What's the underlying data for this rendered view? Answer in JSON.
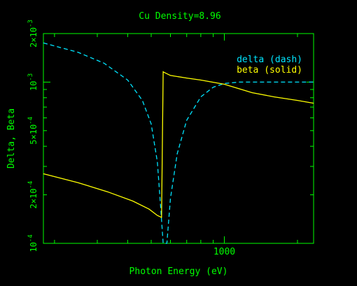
{
  "chart_data": {
    "type": "line",
    "title": "Cu Density=8.96",
    "xlabel": "Photon Energy (eV)",
    "ylabel": "Delta, Beta",
    "xscale": "log",
    "yscale": "log",
    "xlim": [
      180,
      2330
    ],
    "ylim": [
      0.0001,
      0.002
    ],
    "x_tick_labels": [
      "1000"
    ],
    "y_tick_labels": [
      {
        "mantissa": "",
        "exponent": "-4",
        "value": 0.0001
      },
      {
        "mantissa": "2×10",
        "exponent": "-4",
        "value": 0.0002
      },
      {
        "mantissa": "5×10",
        "exponent": "-4",
        "value": 0.0005
      },
      {
        "mantissa": "",
        "exponent": "-3",
        "value": 0.001
      },
      {
        "mantissa": "2×10",
        "exponent": "-3",
        "value": 0.002
      }
    ],
    "grid": false,
    "legend_position": "top-right",
    "colors": {
      "background": "#000000",
      "axes": "#00ff00",
      "delta": "#00e5ff",
      "beta": "#ffff00"
    },
    "series": [
      {
        "name": "delta (dash)",
        "style": "dashed",
        "color": "#00e5ff",
        "x": [
          180,
          250,
          320,
          400,
          460,
          500,
          530,
          545,
          560,
          580,
          600,
          640,
          700,
          800,
          900,
          1000,
          1150,
          1300,
          1600,
          2000,
          2330
        ],
        "y": [
          0.00175,
          0.00153,
          0.00131,
          0.00103,
          0.00077,
          0.00055,
          0.00032,
          0.00018,
          0.0001,
          0.0001,
          0.00019,
          0.00036,
          0.00058,
          0.00081,
          0.00093,
          0.00098,
          0.001,
          0.001,
          0.001,
          0.001,
          0.001
        ]
      },
      {
        "name": "beta (solid)",
        "style": "solid",
        "color": "#ffff00",
        "x": [
          180,
          250,
          330,
          420,
          490,
          530,
          551,
          551.5,
          560,
          565,
          600,
          700,
          800,
          1000,
          1300,
          1600,
          2000,
          2330
        ],
        "y": [
          0.00027,
          0.000238,
          0.000209,
          0.000183,
          0.000163,
          0.000149,
          0.000145,
          0.000145,
          0.00116,
          0.00115,
          0.0011,
          0.00106,
          0.00103,
          0.00097,
          0.00086,
          0.00081,
          0.00077,
          0.00074
        ]
      }
    ]
  }
}
